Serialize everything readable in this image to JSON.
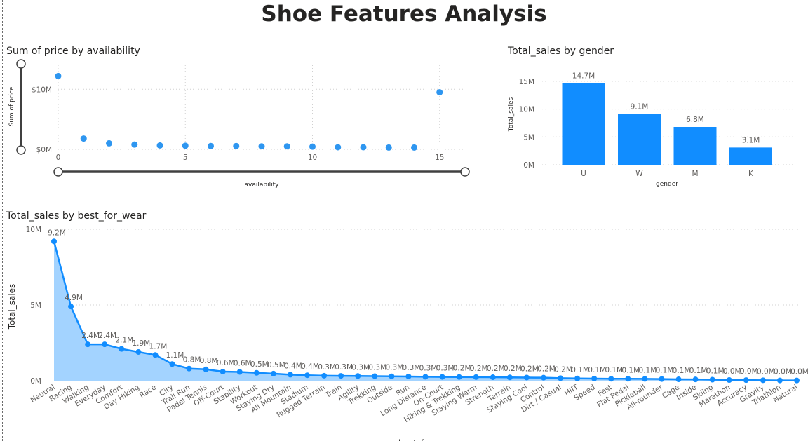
{
  "page": {
    "title": "Shoe Features Analysis"
  },
  "colors": {
    "accent": "#118DFF",
    "scatter": "#2E96F0",
    "area_fill": "#A3D3FF",
    "slider": "#404040"
  },
  "chart_data": [
    {
      "id": "scatter",
      "type": "scatter",
      "title": "Sum of price by availability",
      "xlabel": "availability",
      "ylabel": "Sum of price",
      "xlim": [
        0,
        16
      ],
      "ylim": [
        0,
        14000000
      ],
      "x_ticks": [
        0,
        5,
        10,
        15
      ],
      "y_ticks": [
        {
          "v": 0,
          "label": "$0M"
        },
        {
          "v": 10000000,
          "label": "$10M"
        }
      ],
      "points": [
        {
          "x": 0,
          "y": 12200000
        },
        {
          "x": 1,
          "y": 1800000
        },
        {
          "x": 2,
          "y": 1000000
        },
        {
          "x": 3,
          "y": 800000
        },
        {
          "x": 4,
          "y": 650000
        },
        {
          "x": 5,
          "y": 600000
        },
        {
          "x": 6,
          "y": 550000
        },
        {
          "x": 7,
          "y": 550000
        },
        {
          "x": 8,
          "y": 500000
        },
        {
          "x": 9,
          "y": 500000
        },
        {
          "x": 10,
          "y": 450000
        },
        {
          "x": 11,
          "y": 350000
        },
        {
          "x": 12,
          "y": 350000
        },
        {
          "x": 13,
          "y": 300000
        },
        {
          "x": 14,
          "y": 300000
        },
        {
          "x": 15,
          "y": 9500000
        }
      ]
    },
    {
      "id": "bars",
      "type": "bar",
      "title": "Total_sales by gender",
      "xlabel": "gender",
      "ylabel": "Total_sales",
      "ylim": [
        0,
        17000000
      ],
      "y_ticks": [
        {
          "v": 0,
          "label": "0M"
        },
        {
          "v": 5000000,
          "label": "5M"
        },
        {
          "v": 10000000,
          "label": "10M"
        },
        {
          "v": 15000000,
          "label": "15M"
        }
      ],
      "categories": [
        "U",
        "W",
        "M",
        "K"
      ],
      "values": [
        14700000,
        9100000,
        6800000,
        3100000
      ],
      "labels": [
        "14.7M",
        "9.1M",
        "6.8M",
        "3.1M"
      ]
    },
    {
      "id": "area",
      "type": "area",
      "title": "Total_sales by best_for_wear",
      "xlabel": "best_for_wear",
      "ylabel": "Total_sales",
      "ylim": [
        0,
        10000000
      ],
      "y_ticks": [
        {
          "v": 0,
          "label": "0M"
        },
        {
          "v": 5000000,
          "label": "5M"
        },
        {
          "v": 10000000,
          "label": "10M"
        }
      ],
      "categories": [
        "Neutral",
        "Racing",
        "Walking",
        "Everyday",
        "Comfort",
        "Day Hiking",
        "Race",
        "City",
        "Trail Run",
        "Padel Tennis",
        "Off-Court",
        "Stability",
        "Workout",
        "Staying Dry",
        "All Mountain",
        "Stadium",
        "Rugged Terrain",
        "Train",
        "Agility",
        "Trekking",
        "Outside",
        "Run",
        "Long Distance",
        "On-Court",
        "Hiking & Trekking",
        "Staying Warm",
        "Strength",
        "Terrain",
        "Staying Cool",
        "Control",
        "Dirt / Casual",
        "HIIT",
        "Speed",
        "Fast",
        "Flat Pedal",
        "Pickleball",
        "All-rounder",
        "Cage",
        "Inside",
        "Skiing",
        "Marathon",
        "Accuracy",
        "Gravity",
        "Triathlon",
        "Natural"
      ],
      "values": [
        9200000,
        4900000,
        2400000,
        2400000,
        2100000,
        1900000,
        1700000,
        1100000,
        800000,
        750000,
        600000,
        580000,
        520000,
        470000,
        400000,
        360000,
        330000,
        320000,
        310000,
        300000,
        290000,
        280000,
        260000,
        250000,
        245000,
        240000,
        230000,
        220000,
        210000,
        200000,
        170000,
        150000,
        140000,
        130000,
        125000,
        120000,
        110000,
        90000,
        85000,
        70000,
        45000,
        40000,
        30000,
        20000,
        15000
      ],
      "labels": [
        "9.2M",
        "4.9M",
        "2.4M",
        "2.4M",
        "2.1M",
        "1.9M",
        "1.7M",
        "1.1M",
        "0.8M",
        "0.8M",
        "0.6M",
        "0.6M",
        "0.5M",
        "0.5M",
        "0.4M",
        "0.4M",
        "0.3M",
        "0.3M",
        "0.3M",
        "0.3M",
        "0.3M",
        "0.3M",
        "0.3M",
        "0.3M",
        "0.2M",
        "0.2M",
        "0.2M",
        "0.2M",
        "0.2M",
        "0.2M",
        "0.2M",
        "0.1M",
        "0.1M",
        "0.1M",
        "0.1M",
        "0.1M",
        "0.1M",
        "0.1M",
        "0.1M",
        "0.1M",
        "0.0M",
        "0.0M",
        "0.0M",
        "0.0M",
        "0.0M"
      ]
    }
  ]
}
